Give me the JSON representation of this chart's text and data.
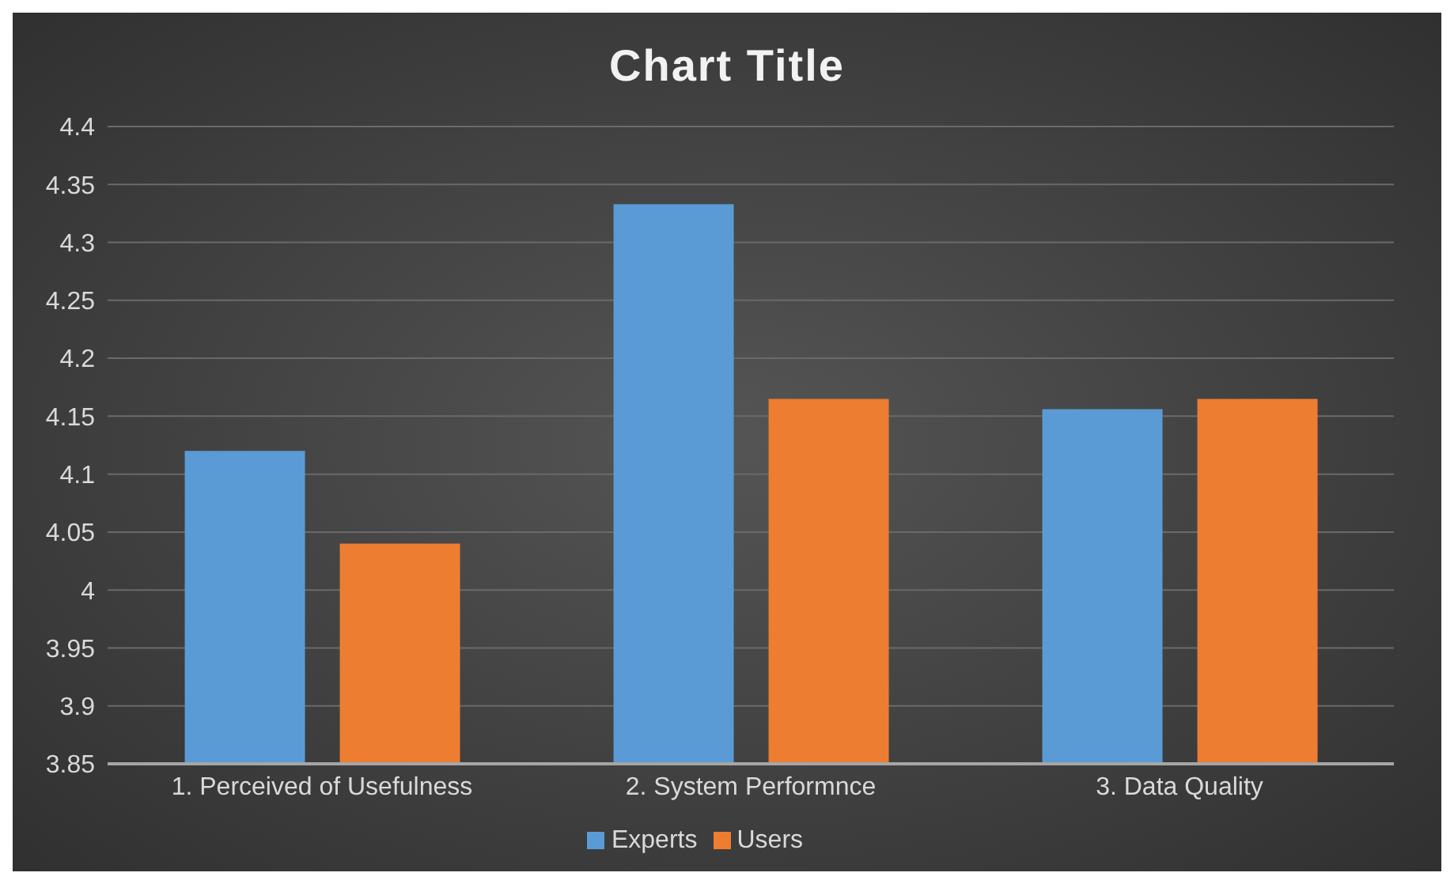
{
  "chart_data": {
    "type": "bar",
    "title": "Chart Title",
    "categories": [
      "1. Perceived of Usefulness",
      "2. System Performnce",
      "3. Data Quality"
    ],
    "series": [
      {
        "name": "Experts",
        "color": "#5b9bd5",
        "values": [
          4.12,
          4.333,
          4.156
        ]
      },
      {
        "name": "Users",
        "color": "#ed7d31",
        "values": [
          4.04,
          4.165,
          4.165
        ]
      }
    ],
    "ylim": [
      3.85,
      4.4
    ],
    "yticks": [
      3.85,
      3.9,
      3.95,
      4,
      4.05,
      4.1,
      4.15,
      4.2,
      4.25,
      4.3,
      4.35,
      4.4
    ],
    "grid": "y",
    "legend": "bottom"
  }
}
